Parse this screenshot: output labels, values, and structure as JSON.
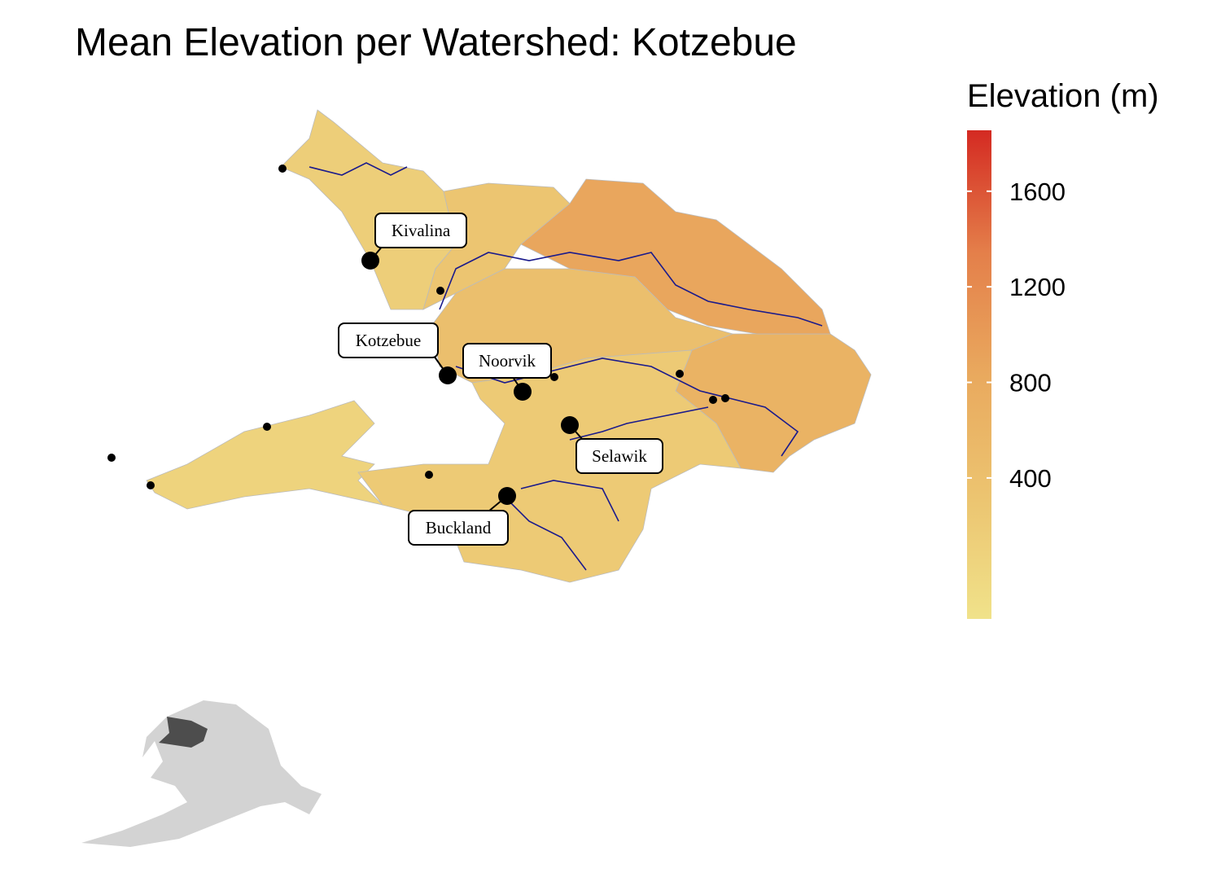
{
  "title": "Mean Elevation per Watershed: Kotzebue",
  "legend": {
    "title": "Elevation (m)",
    "lim": [
      -190,
      1855
    ],
    "ticks": [
      400,
      800,
      1200,
      1600
    ],
    "colors": [
      "#f0e28a",
      "#ecc470",
      "#e9a95e",
      "#e47f4a",
      "#d42a22"
    ]
  },
  "regions": [
    {
      "elevation": 150
    },
    {
      "elevation": 300
    },
    {
      "elevation": 870
    },
    {
      "elevation": 420
    },
    {
      "elevation": 650
    },
    {
      "elevation": 220
    },
    {
      "elevation": 60
    }
  ],
  "towns": [
    "Kivalina",
    "Kotzebue",
    "Noorvik",
    "Selawik",
    "Buckland"
  ]
}
